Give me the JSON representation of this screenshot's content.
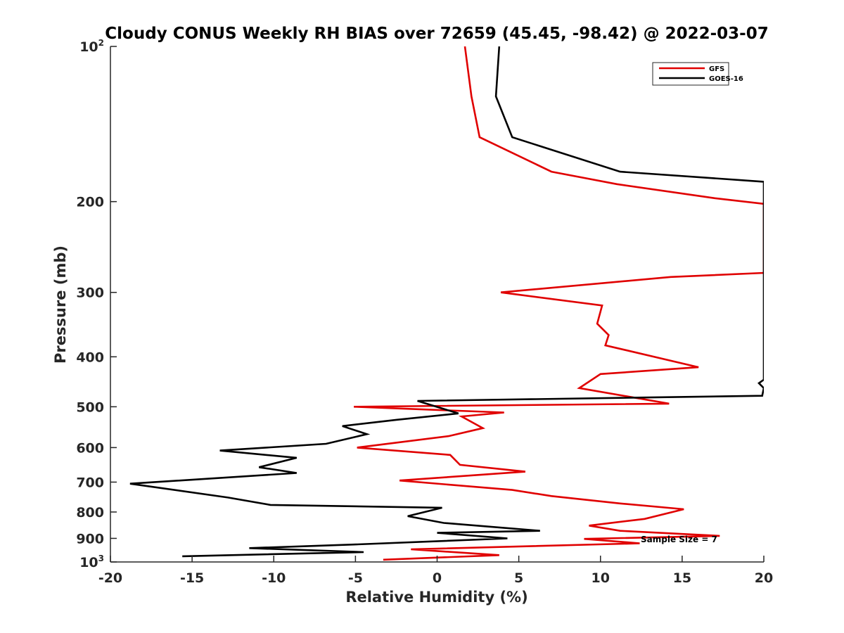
{
  "chart_data": {
    "type": "line",
    "title": "Cloudy CONUS Weekly RH BIAS over 72659 (45.45, -98.42) @ 2022-03-07",
    "xlabel": "Relative Humidity (%)",
    "ylabel": "Pressure (mb)",
    "xlim": [
      -20,
      20
    ],
    "ylim": [
      100,
      1000
    ],
    "yscale": "log",
    "yreversed": true,
    "x_ticks": [
      "-20",
      "-15",
      "-10",
      "-5",
      "0",
      "5",
      "10",
      "15",
      "20"
    ],
    "y_ticks": [
      {
        "value": 100,
        "base": "10",
        "sup": "2"
      },
      {
        "value": 200,
        "label": "200"
      },
      {
        "value": 300,
        "label": "300"
      },
      {
        "value": 400,
        "label": "400"
      },
      {
        "value": 500,
        "label": "500"
      },
      {
        "value": 600,
        "label": "600"
      },
      {
        "value": 700,
        "label": "700"
      },
      {
        "value": 800,
        "label": "800"
      },
      {
        "value": 900,
        "label": "900"
      },
      {
        "value": 1000,
        "base": "10",
        "sup": "3"
      }
    ],
    "legend_position": "top-right",
    "annotation": "Sample Size = 7",
    "series": [
      {
        "name": "GFS",
        "color": "#e00000",
        "points": [
          [
            1.7,
            100
          ],
          [
            2.1,
            125
          ],
          [
            2.6,
            150
          ],
          [
            7.0,
            175
          ],
          [
            11.0,
            185
          ],
          [
            17.0,
            197
          ],
          [
            20.0,
            202
          ],
          [
            20.0,
            275
          ],
          [
            14.3,
            280
          ],
          [
            3.9,
            300
          ],
          [
            10.1,
            318
          ],
          [
            9.8,
            345
          ],
          [
            10.5,
            363
          ],
          [
            10.3,
            380
          ],
          [
            16.0,
            419
          ],
          [
            10.0,
            432
          ],
          [
            8.7,
            460
          ],
          [
            14.2,
            493
          ],
          [
            -5.1,
            500
          ],
          [
            4.1,
            513
          ],
          [
            1.5,
            522
          ],
          [
            2.8,
            550
          ],
          [
            0.7,
            570
          ],
          [
            -4.9,
            600
          ],
          [
            0.8,
            620
          ],
          [
            1.4,
            648
          ],
          [
            5.4,
            668
          ],
          [
            -2.3,
            695
          ],
          [
            4.6,
            725
          ],
          [
            7.0,
            745
          ],
          [
            11.2,
            770
          ],
          [
            15.1,
            790
          ],
          [
            12.7,
            825
          ],
          [
            9.3,
            850
          ],
          [
            11.2,
            870
          ],
          [
            17.3,
            890
          ],
          [
            9.0,
            902
          ],
          [
            12.4,
            920
          ],
          [
            -1.6,
            945
          ],
          [
            3.8,
            970
          ],
          [
            -3.3,
            990
          ]
        ]
      },
      {
        "name": "GOES-16",
        "color": "#000000",
        "points": [
          [
            3.8,
            100
          ],
          [
            3.6,
            125
          ],
          [
            4.6,
            150
          ],
          [
            11.2,
            175
          ],
          [
            20.0,
            183
          ],
          [
            20.0,
            443
          ],
          [
            19.7,
            450
          ],
          [
            20.0,
            460
          ],
          [
            19.9,
            476
          ],
          [
            -1.2,
            487
          ],
          [
            1.3,
            515
          ],
          [
            -2.5,
            530
          ],
          [
            -5.8,
            545
          ],
          [
            -4.3,
            565
          ],
          [
            -6.8,
            590
          ],
          [
            -13.3,
            608
          ],
          [
            -8.6,
            628
          ],
          [
            -10.9,
            655
          ],
          [
            -8.6,
            672
          ],
          [
            -18.8,
            705
          ],
          [
            -12.8,
            750
          ],
          [
            -10.2,
            775
          ],
          [
            0.3,
            785
          ],
          [
            -1.8,
            815
          ],
          [
            0.4,
            840
          ],
          [
            6.3,
            870
          ],
          [
            0.0,
            878
          ],
          [
            4.3,
            900
          ],
          [
            -5.1,
            925
          ],
          [
            -11.5,
            940
          ],
          [
            -4.5,
            957
          ],
          [
            -15.6,
            975
          ]
        ]
      }
    ]
  }
}
